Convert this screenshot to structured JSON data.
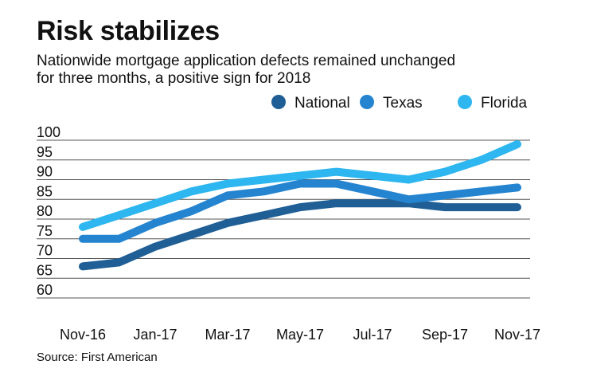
{
  "header": {
    "title": "Risk stabilizes",
    "subtitle_line1": "Nationwide mortgage application defects remained unchanged",
    "subtitle_line2": "for three months, a positive sign for 2018"
  },
  "footer": {
    "source": "Source: First American"
  },
  "chart_data": {
    "type": "line",
    "title": "Risk stabilizes",
    "subtitle": "Nationwide mortgage application defects remained unchanged for three months, a positive sign for 2018",
    "xlabel": "",
    "ylabel": "",
    "ylim": [
      60,
      100
    ],
    "yticks": [
      60,
      65,
      70,
      75,
      80,
      85,
      90,
      95,
      100
    ],
    "grid": true,
    "legend_position": "top-right",
    "categories": [
      "Nov-16",
      "Dec-16",
      "Jan-17",
      "Feb-17",
      "Mar-17",
      "Apr-17",
      "May-17",
      "Jun-17",
      "Jul-17",
      "Aug-17",
      "Sep-17",
      "Oct-17",
      "Nov-17"
    ],
    "x_tick_labels": [
      "Nov-16",
      "Jan-17",
      "Mar-17",
      "May-17",
      "Jul-17",
      "Sep-17",
      "Nov-17"
    ],
    "series": [
      {
        "name": "National",
        "color": "#1f5f96",
        "values": [
          68,
          69,
          73,
          76,
          79,
          81,
          83,
          84,
          84,
          84,
          83,
          83,
          83
        ]
      },
      {
        "name": "Texas",
        "color": "#2484cf",
        "values": [
          75,
          75,
          79,
          82,
          86,
          87,
          89,
          89,
          87,
          85,
          86,
          87,
          88
        ]
      },
      {
        "name": "Florida",
        "color": "#2db6f0",
        "values": [
          78,
          81,
          84,
          87,
          89,
          90,
          91,
          92,
          91,
          90,
          92,
          95,
          99
        ]
      }
    ]
  }
}
